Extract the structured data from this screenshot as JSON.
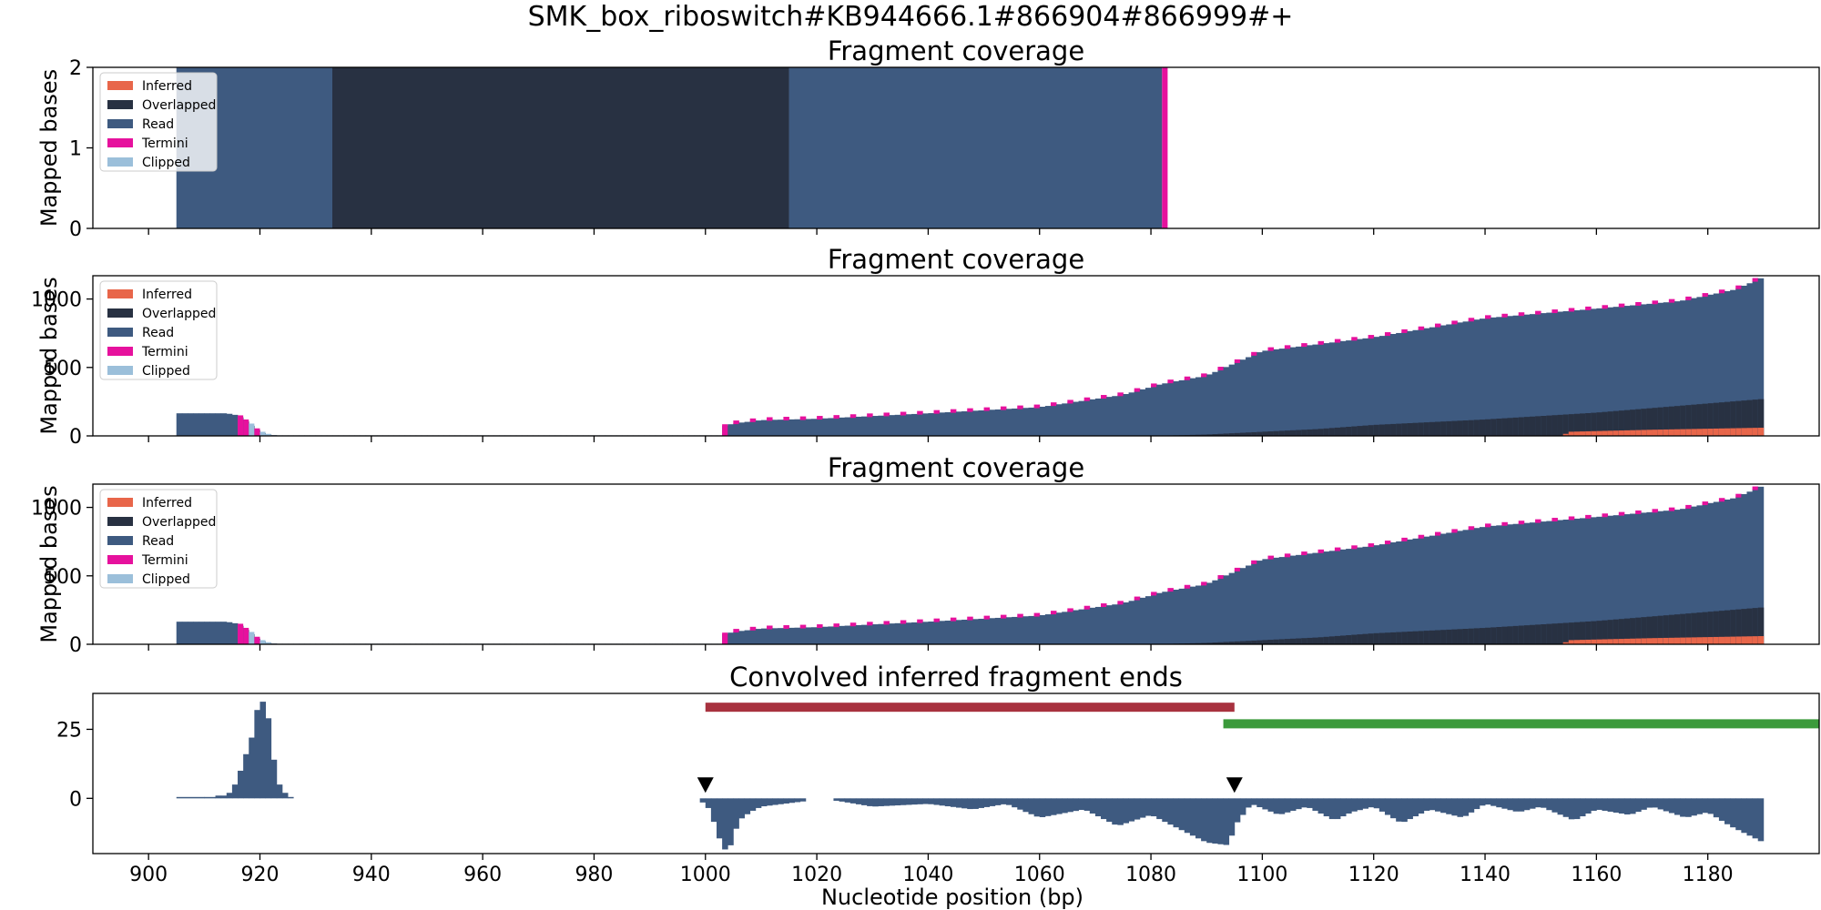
{
  "figure": {
    "suptitle": "SMK_box_riboswitch#KB944666.1#866904#866999#+",
    "xlabel": "Nucleotide position (bp)"
  },
  "colors": {
    "inferred": "#e8664a",
    "overlapped": "#283142",
    "read": "#3e5a80",
    "termini": "#e6119d",
    "clipped": "#9bbfda",
    "conv": "#3e5a80",
    "bar_red": "#a8323f",
    "bar_green": "#3b9a3b",
    "marker": "#000000"
  },
  "chart_data": [
    {
      "type": "area",
      "title": "Fragment coverage",
      "ylabel": "Mapped bases",
      "xlim": [
        890,
        1200
      ],
      "ylim": [
        0,
        2
      ],
      "yticks": [
        0,
        1,
        2
      ],
      "xticks": [
        900,
        920,
        940,
        960,
        980,
        1000,
        1020,
        1040,
        1060,
        1080,
        1100,
        1120,
        1140,
        1160,
        1180
      ],
      "legend": {
        "placement": "top-left",
        "entries": [
          "Inferred",
          "Overlapped",
          "Read",
          "Termini",
          "Clipped"
        ]
      },
      "segments": [
        {
          "series": "Read",
          "x0": 905,
          "x1": 933,
          "y": 2
        },
        {
          "series": "Overlapped",
          "x0": 933,
          "x1": 1015,
          "y": 2
        },
        {
          "series": "Read",
          "x0": 1015,
          "x1": 1082,
          "y": 2
        },
        {
          "series": "Termini",
          "x0": 1082,
          "x1": 1083,
          "y": 2
        }
      ]
    },
    {
      "type": "area",
      "title": "Fragment coverage",
      "ylabel": "Mapped bases",
      "xlim": [
        890,
        1200
      ],
      "ylim": [
        0,
        1170
      ],
      "yticks": [
        0,
        500,
        1000
      ],
      "legend": {
        "placement": "top-left",
        "entries": [
          "Inferred",
          "Overlapped",
          "Read",
          "Termini",
          "Clipped"
        ]
      },
      "total": {
        "x": [
          905,
          914,
          916,
          918,
          920,
          922,
          1003,
          1005,
          1010,
          1020,
          1040,
          1060,
          1075,
          1082,
          1090,
          1100,
          1120,
          1140,
          1160,
          1175,
          1185,
          1190
        ],
        "y": [
          165,
          165,
          150,
          90,
          25,
          5,
          70,
          90,
          115,
          125,
          165,
          210,
          300,
          380,
          440,
          620,
          720,
          860,
          930,
          985,
          1070,
          1160
        ]
      },
      "overlapped": {
        "x": [
          905,
          1080,
          1090,
          1100,
          1110,
          1120,
          1140,
          1160,
          1175,
          1190
        ],
        "y": [
          0,
          0,
          10,
          30,
          50,
          80,
          120,
          170,
          220,
          270
        ]
      },
      "inferred": {
        "x": [
          905,
          1154,
          1155,
          1170,
          1190
        ],
        "y": [
          0,
          0,
          30,
          45,
          60
        ]
      }
    },
    {
      "type": "area",
      "title": "Fragment coverage",
      "ylabel": "Mapped bases",
      "xlim": [
        890,
        1200
      ],
      "ylim": [
        0,
        1170
      ],
      "yticks": [
        0,
        500,
        1000
      ],
      "legend": {
        "placement": "top-left",
        "entries": [
          "Inferred",
          "Overlapped",
          "Read",
          "Termini",
          "Clipped"
        ]
      },
      "total": {
        "x": [
          905,
          914,
          916,
          918,
          920,
          922,
          1003,
          1005,
          1010,
          1020,
          1040,
          1060,
          1075,
          1082,
          1090,
          1100,
          1120,
          1140,
          1160,
          1175,
          1185,
          1190
        ],
        "y": [
          165,
          165,
          150,
          90,
          25,
          5,
          70,
          90,
          115,
          125,
          165,
          210,
          300,
          380,
          440,
          620,
          720,
          860,
          930,
          985,
          1070,
          1160
        ]
      },
      "overlapped": {
        "x": [
          905,
          1080,
          1090,
          1100,
          1110,
          1120,
          1140,
          1160,
          1175,
          1190
        ],
        "y": [
          0,
          0,
          10,
          30,
          50,
          80,
          120,
          170,
          220,
          270
        ]
      },
      "inferred": {
        "x": [
          905,
          1154,
          1155,
          1170,
          1190
        ],
        "y": [
          0,
          0,
          30,
          45,
          60
        ]
      }
    },
    {
      "type": "bar",
      "title": "Convolved inferred fragment ends",
      "xlim": [
        890,
        1200
      ],
      "ylim": [
        -20,
        38
      ],
      "yticks": [
        0,
        25
      ],
      "peak": {
        "x": [
          905,
          910,
          912,
          913,
          914,
          915,
          916,
          917,
          918,
          919,
          920,
          921,
          922,
          923,
          924,
          925
        ],
        "y": [
          0,
          0,
          1,
          1,
          2,
          5,
          10,
          16,
          22,
          32,
          35,
          29,
          14,
          5,
          2,
          0.5
        ]
      },
      "trough": {
        "x": [
          999,
          1000,
          1001,
          1002,
          1003,
          1004,
          1005,
          1006,
          1008,
          1010,
          1014,
          1018,
          1020,
          1022,
          1024,
          1030,
          1040,
          1048,
          1054,
          1060,
          1068,
          1074,
          1080,
          1086,
          1090,
          1094,
          1095,
          1098,
          1103,
          1108,
          1113,
          1116,
          1120,
          1125,
          1130,
          1136,
          1140,
          1146,
          1150,
          1156,
          1160,
          1166,
          1170,
          1176,
          1180,
          1184,
          1188,
          1190
        ],
        "y": [
          -1,
          -2,
          -5,
          -12,
          -17,
          -20,
          -14,
          -8,
          -5,
          -3,
          -2,
          -1,
          0,
          -0.5,
          -1,
          -3,
          -2,
          -4,
          -2,
          -7,
          -4,
          -10,
          -6,
          -12,
          -16,
          -17,
          -10,
          -2,
          -6,
          -3,
          -8,
          -5,
          -3,
          -9,
          -4,
          -7,
          -2,
          -5,
          -3,
          -8,
          -4,
          -6,
          -3,
          -7,
          -5,
          -10,
          -14,
          -16
        ]
      },
      "markers": [
        1000,
        1095
      ],
      "segments": [
        {
          "x0": 1000,
          "x1": 1095,
          "y": 33
        },
        {
          "x0": 1093,
          "x1": 1200,
          "y": 27
        }
      ]
    }
  ]
}
